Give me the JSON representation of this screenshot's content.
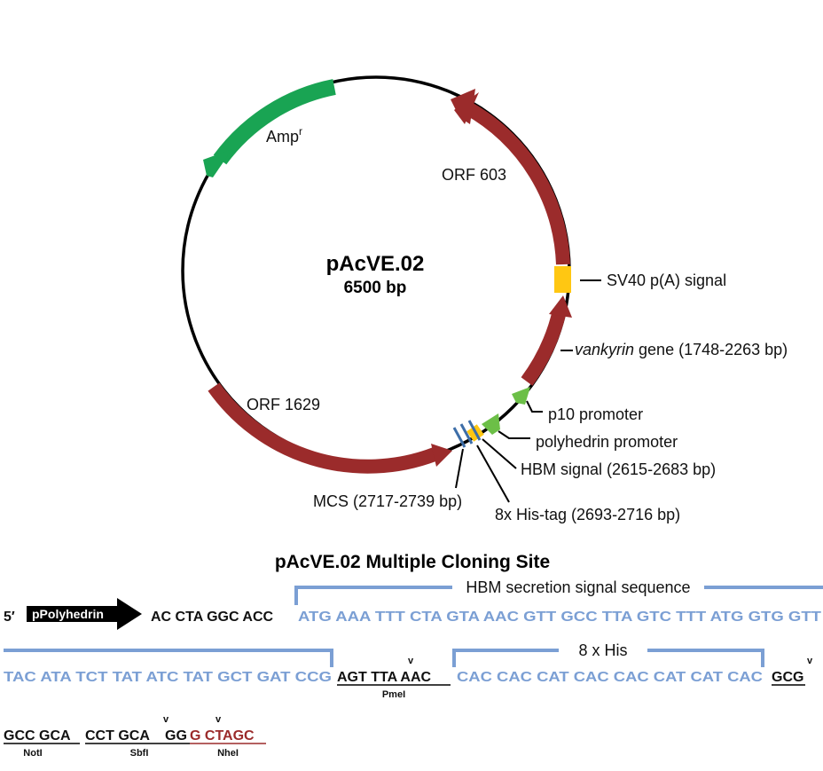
{
  "plasmid": {
    "name": "pAcVE.02",
    "size": "6500 bp"
  },
  "features": {
    "amp": {
      "label": "Amp",
      "sup": "r"
    },
    "orf603": "ORF 603",
    "sv40": "SV40 p(A) signal",
    "vankyrin_italic": "vankyrin",
    "vankyrin_rest": " gene (1748-2263 bp)",
    "p10": "p10 promoter",
    "polyhedrin": "polyhedrin promoter",
    "hbm": "HBM signal (2615-2683 bp)",
    "orf1629": "ORF 1629",
    "mcs": "MCS (2717-2739 bp)",
    "his": "8x His-tag (2693-2716 bp)"
  },
  "colors": {
    "orf": "#9b2b2b",
    "amp": "#19a453",
    "promoter": "#6cbf47",
    "signal": "#ffc712",
    "mcs": "#3d6ea8",
    "bracket": "#7b9fd4"
  },
  "mcs_section": {
    "title": "pAcVE.02 Multiple Cloning Site",
    "five_prime": "5′",
    "promoter_arrow": "pPolyhedrin",
    "row1_black": "AC CTA GGC ACC",
    "row1_blue": "ATG AAA TTT CTA GTA AAC GTT GCC TTA GTC TTT ATG GTG GTT",
    "hbm_bracket": "HBM secretion signal sequence",
    "row2_blue": "TAC ATA TCT TAT ATC TAT GCT GAT CCG",
    "row2_pme": "AGT TTA AAC",
    "row2_his": "CAC CAC CAT CAC CAC CAT CAT CAC",
    "row2_end": "GCG",
    "his_bracket": "8 x His",
    "row3_not": "GCC GCA",
    "row3_sbf_a": "CCT GCA",
    "row3_sbf_b": "GG",
    "row3_nhe": "G CTAGC",
    "cut_mark": "v",
    "enzymes": {
      "pme": "PmeI",
      "not": "NotI",
      "sbf": "SbfI",
      "nhe": "NheI"
    }
  }
}
